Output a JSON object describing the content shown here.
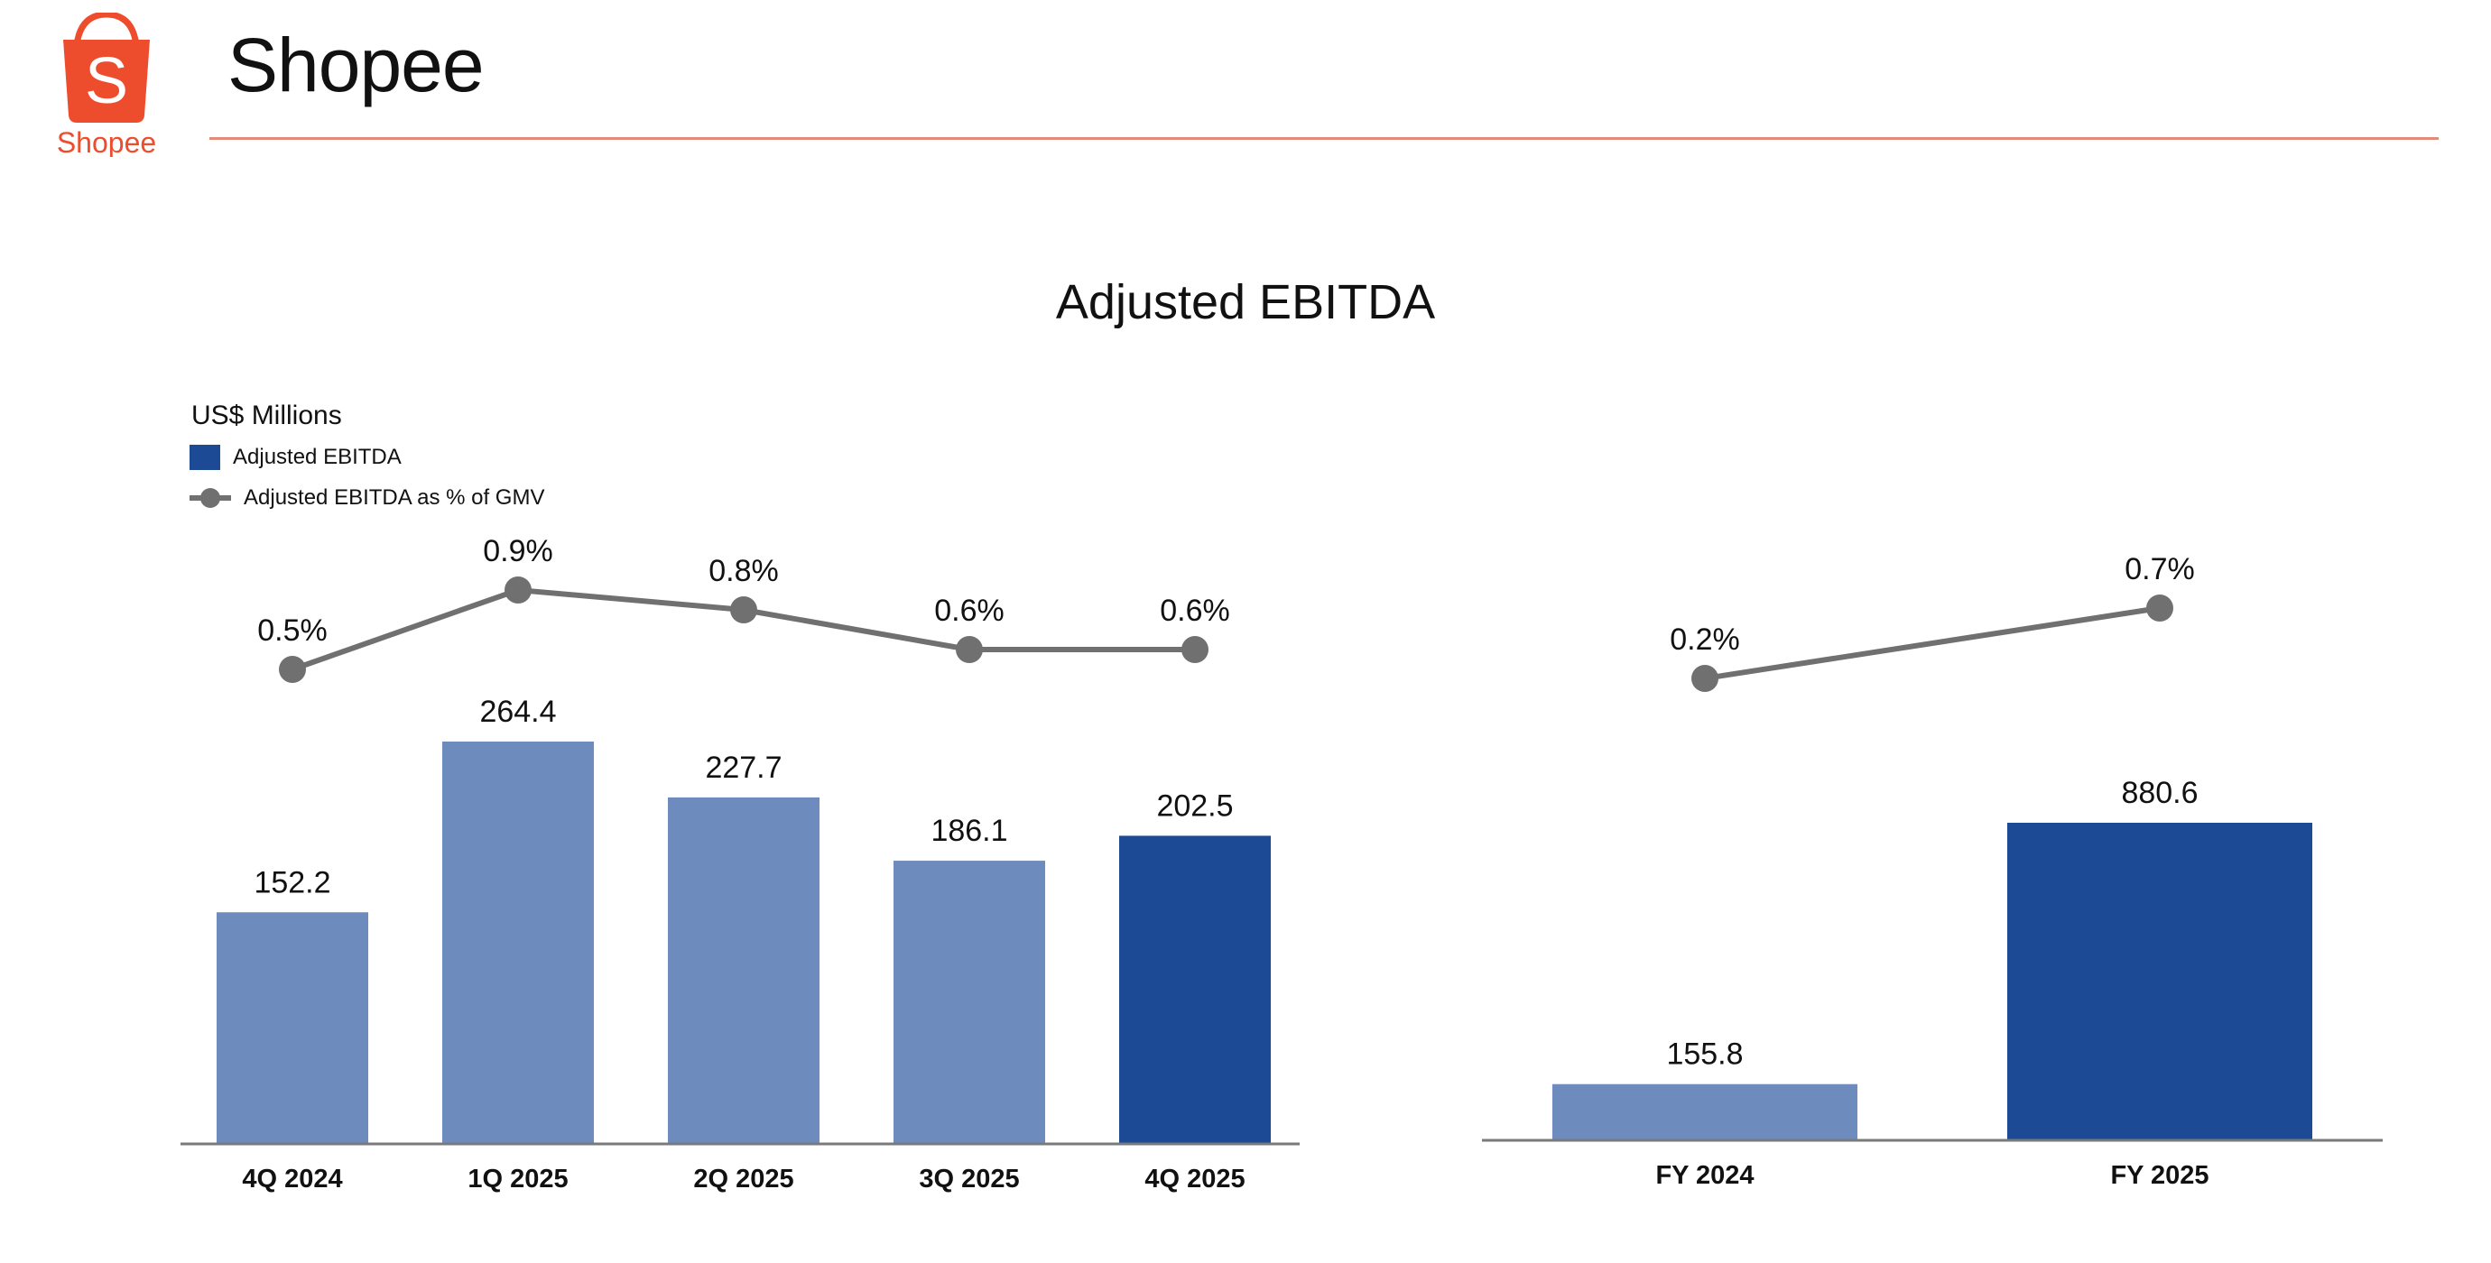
{
  "header": {
    "logo_text": "Shopee",
    "title": "Shopee",
    "rule_color": "#e38a7a",
    "logo_color": "#ee4d2d"
  },
  "chart": {
    "title": "Adjusted EBITDA",
    "units": "US$ Millions",
    "legend": {
      "bar_label": "Adjusted EBITDA",
      "line_label": "Adjusted EBITDA as % of GMV"
    }
  },
  "chart_data": [
    {
      "type": "bar",
      "categories": [
        "4Q 2024",
        "1Q 2025",
        "2Q 2025",
        "3Q 2025",
        "4Q 2025"
      ],
      "series": [
        {
          "name": "Adjusted EBITDA",
          "values": [
            152.2,
            264.4,
            227.7,
            186.1,
            202.5
          ],
          "labels": [
            "152.2",
            "264.4",
            "227.7",
            "186.1",
            "202.5"
          ],
          "colors": [
            "#6d8cbd",
            "#6d8cbd",
            "#6d8cbd",
            "#6d8cbd",
            "#1c4a94"
          ]
        },
        {
          "name": "Adjusted EBITDA as % of GMV",
          "type": "line",
          "values": [
            0.5,
            0.9,
            0.8,
            0.6,
            0.6
          ],
          "labels": [
            "0.5%",
            "0.9%",
            "0.8%",
            "0.6%",
            "0.6%"
          ],
          "color": "#707070"
        }
      ],
      "ylim": [
        0,
        264.4
      ]
    },
    {
      "type": "bar",
      "categories": [
        "FY 2024",
        "FY 2025"
      ],
      "series": [
        {
          "name": "Adjusted EBITDA",
          "values": [
            155.8,
            880.6
          ],
          "labels": [
            "155.8",
            "880.6"
          ],
          "colors": [
            "#6d8cbd",
            "#1c4a94"
          ]
        },
        {
          "name": "Adjusted EBITDA as % of GMV",
          "type": "line",
          "values": [
            0.2,
            0.7
          ],
          "labels": [
            "0.2%",
            "0.7%"
          ],
          "color": "#707070"
        }
      ],
      "ylim": [
        0,
        880.6
      ]
    }
  ]
}
